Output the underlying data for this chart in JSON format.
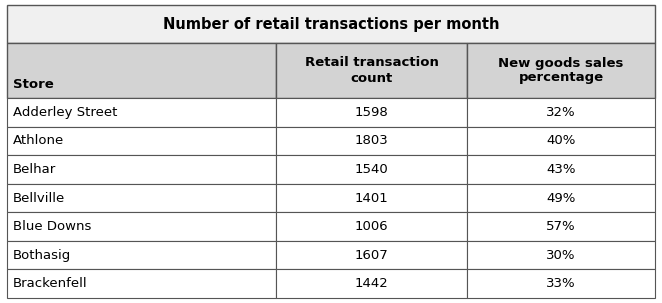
{
  "title": "Number of retail transactions per month",
  "col_headers": [
    "Store",
    "Retail transaction\ncount",
    "New goods sales\npercentage"
  ],
  "rows": [
    [
      "Adderley Street",
      "1598",
      "32%"
    ],
    [
      "Athlone",
      "1803",
      "40%"
    ],
    [
      "Belhar",
      "1540",
      "43%"
    ],
    [
      "Bellville",
      "1401",
      "49%"
    ],
    [
      "Blue Downs",
      "1006",
      "57%"
    ],
    [
      "Bothasig",
      "1607",
      "30%"
    ],
    [
      "Brackenfell",
      "1442",
      "33%"
    ]
  ],
  "header_bg": "#d3d3d3",
  "title_bg": "#f0f0f0",
  "row_bg": "#ffffff",
  "border_color": "#555555",
  "text_color": "#000000",
  "figsize": [
    6.62,
    3.03
  ],
  "dpi": 100,
  "title_fontsize": 10.5,
  "header_fontsize": 9.5,
  "data_fontsize": 9.5
}
